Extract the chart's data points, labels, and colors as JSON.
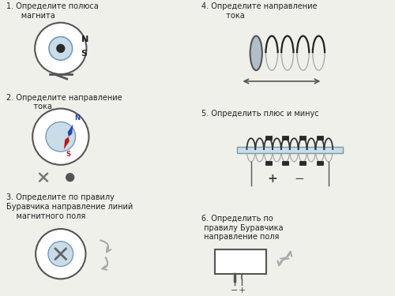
{
  "bg_color": "#f0f0eb",
  "text_color": "#222222",
  "title_1": "1. Определите полюса\n      магнита",
  "title_2": "2. Определите направление\n           тока",
  "title_3": "3. Определите по правилу\nБуравчика направление линий\n    магнитного поля",
  "title_4": "4. Определите направление\n          тока",
  "title_5": "5. Определить плюс и минус",
  "title_6": "6. Определить по\n правилу Буравчика\n направление поля",
  "font_size": 7.0,
  "magnet_N_color": "#2244bb",
  "magnet_S_color": "#cc1111",
  "circle_light": "#c8dde8",
  "arrow_gray": "#aaaaaa"
}
